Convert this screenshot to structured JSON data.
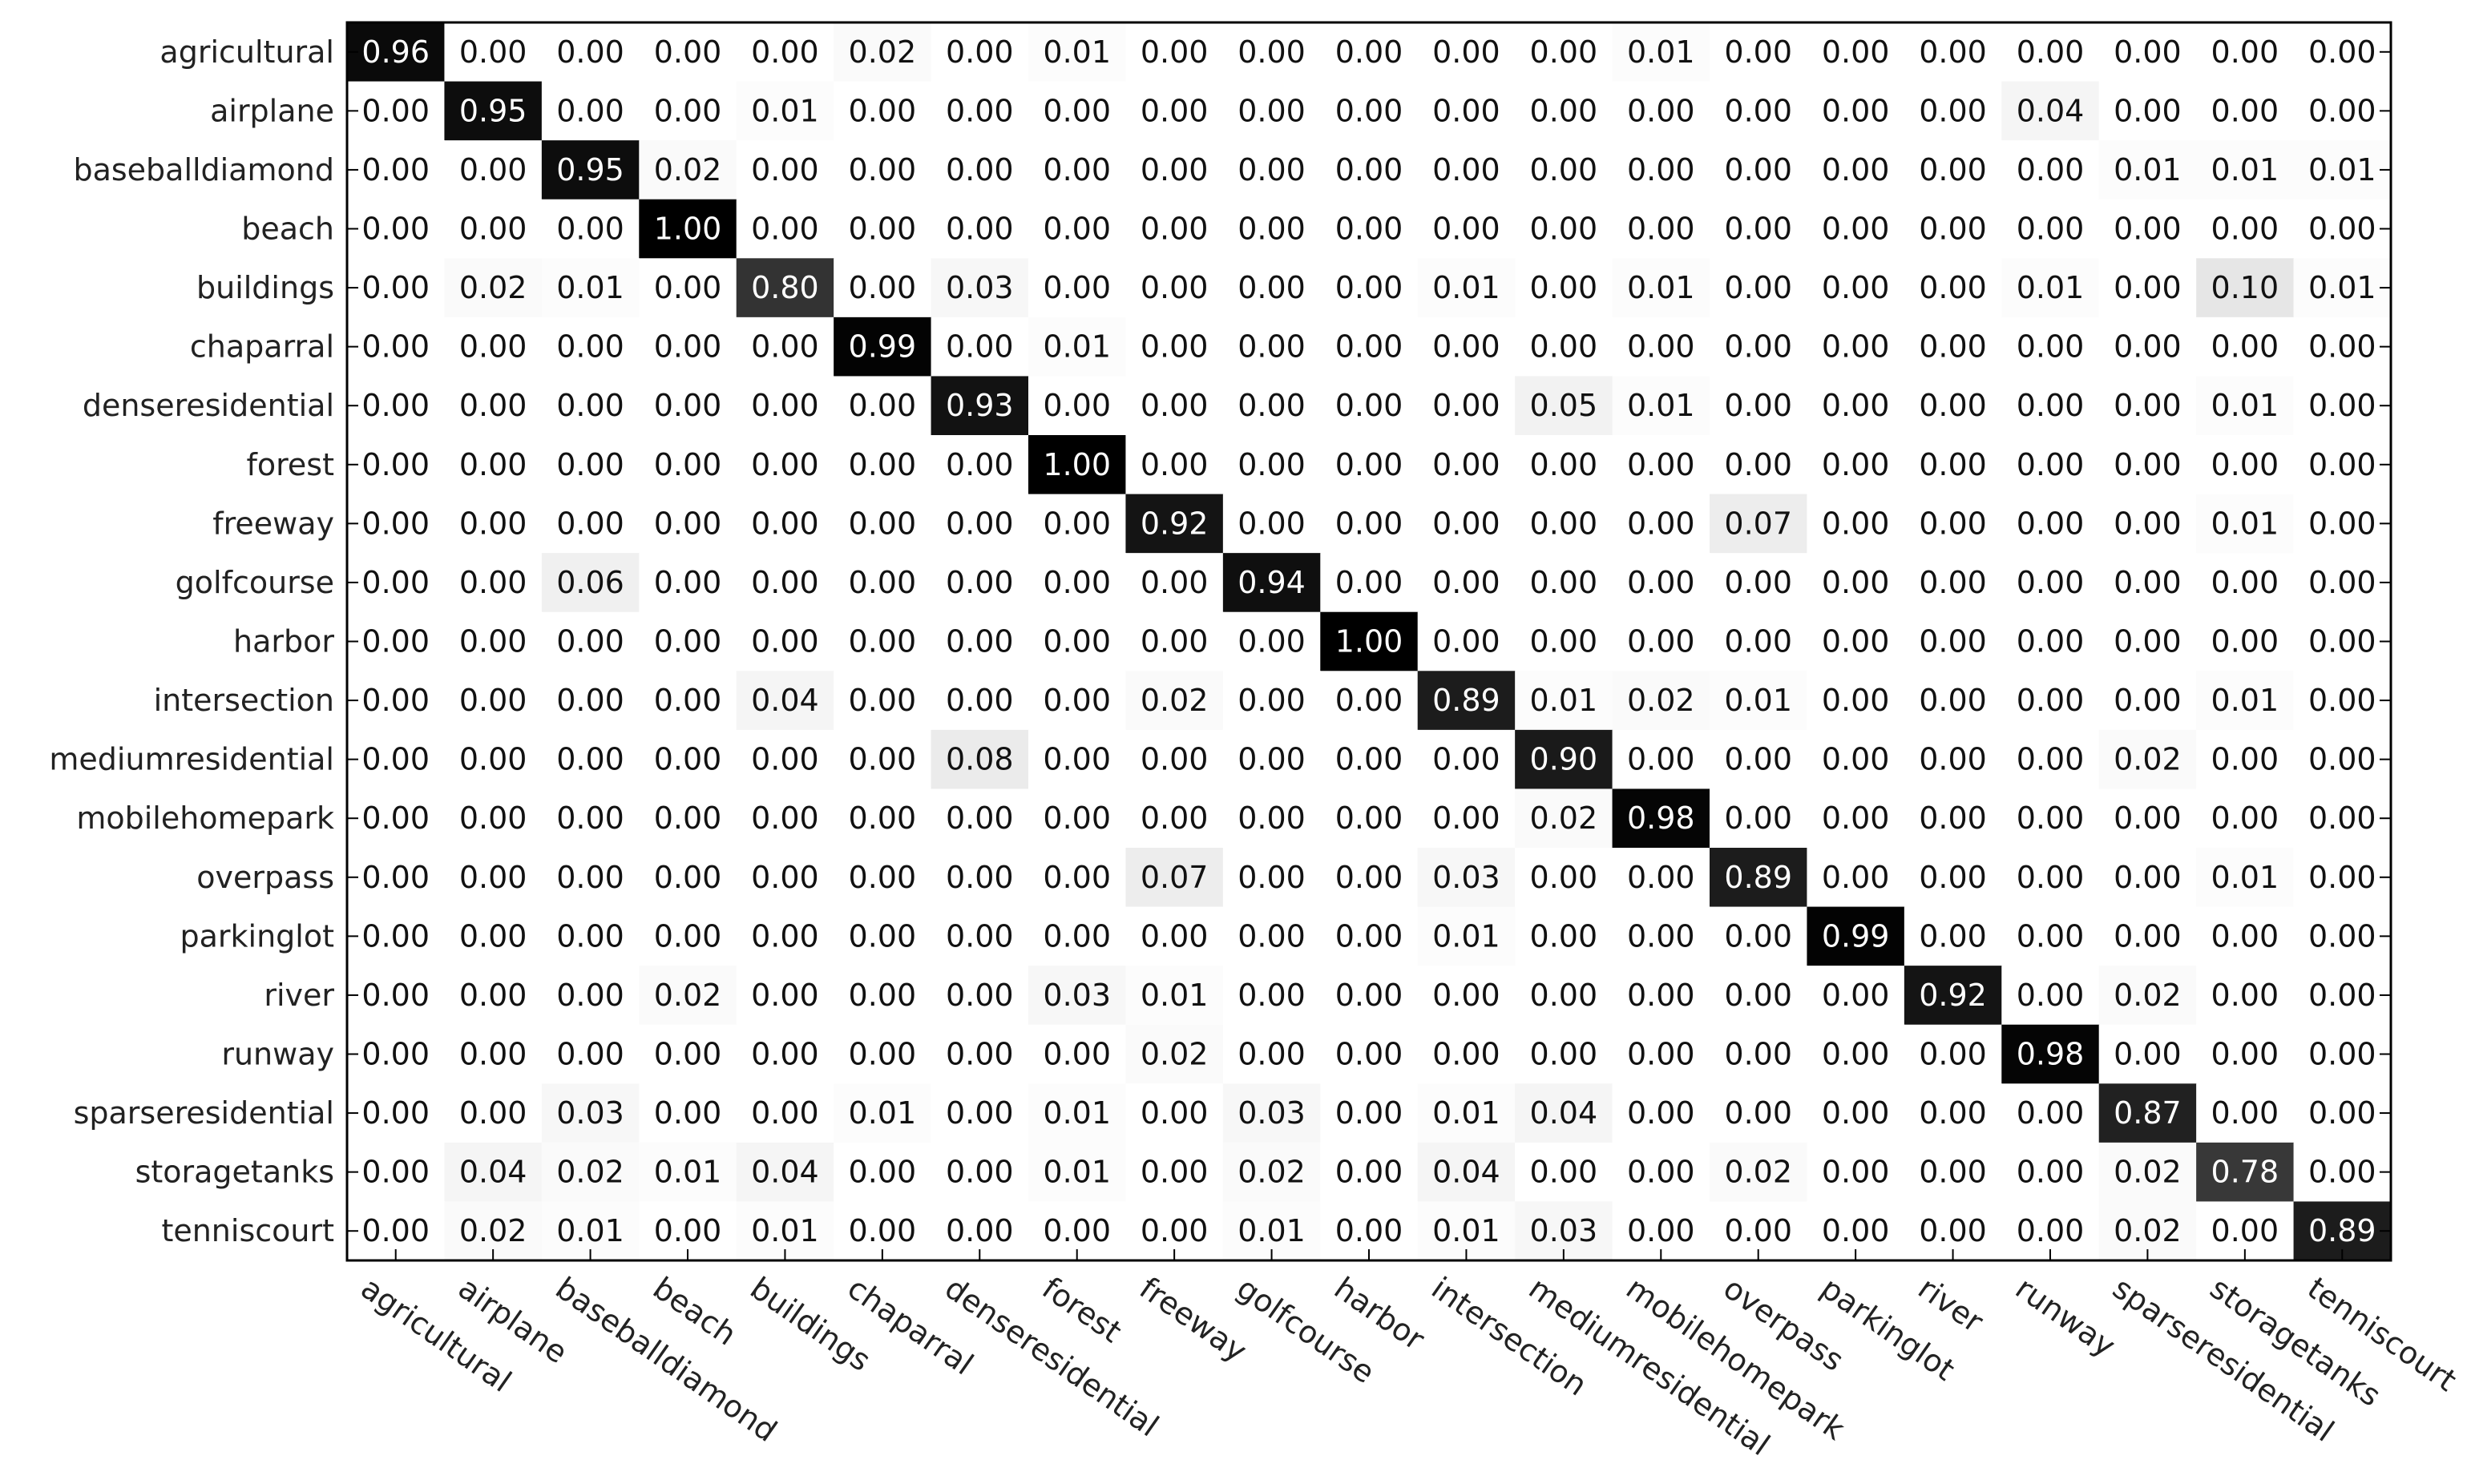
{
  "chart_data": {
    "type": "heatmap",
    "title": "",
    "xlabel": "",
    "ylabel": "",
    "value_format": "2 decimals",
    "colormap": [
      "#ffffff",
      "#000000"
    ],
    "row_labels": [
      "agricultural",
      "airplane",
      "baseballdiamond",
      "beach",
      "buildings",
      "chaparral",
      "denseresidential",
      "forest",
      "freeway",
      "golfcourse",
      "harbor",
      "intersection",
      "mediumresidential",
      "mobilehomepark",
      "overpass",
      "parkinglot",
      "river",
      "runway",
      "sparseresidential",
      "storagetanks",
      "tenniscourt"
    ],
    "col_labels": [
      "agricultural",
      "airplane",
      "baseballdiamond",
      "beach",
      "buildings",
      "chaparral",
      "denseresidential",
      "forest",
      "freeway",
      "golfcourse",
      "harbor",
      "intersection",
      "mediumresidential",
      "mobilehomepark",
      "overpass",
      "parkinglot",
      "river",
      "runway",
      "sparseresidential",
      "storagetanks",
      "tenniscourt"
    ],
    "matrix": [
      [
        0.96,
        0.0,
        0.0,
        0.0,
        0.0,
        0.02,
        0.0,
        0.01,
        0.0,
        0.0,
        0.0,
        0.0,
        0.0,
        0.01,
        0.0,
        0.0,
        0.0,
        0.0,
        0.0,
        0.0,
        0.0
      ],
      [
        0.0,
        0.95,
        0.0,
        0.0,
        0.01,
        0.0,
        0.0,
        0.0,
        0.0,
        0.0,
        0.0,
        0.0,
        0.0,
        0.0,
        0.0,
        0.0,
        0.0,
        0.04,
        0.0,
        0.0,
        0.0
      ],
      [
        0.0,
        0.0,
        0.95,
        0.02,
        0.0,
        0.0,
        0.0,
        0.0,
        0.0,
        0.0,
        0.0,
        0.0,
        0.0,
        0.0,
        0.0,
        0.0,
        0.0,
        0.0,
        0.01,
        0.01,
        0.01
      ],
      [
        0.0,
        0.0,
        0.0,
        1.0,
        0.0,
        0.0,
        0.0,
        0.0,
        0.0,
        0.0,
        0.0,
        0.0,
        0.0,
        0.0,
        0.0,
        0.0,
        0.0,
        0.0,
        0.0,
        0.0,
        0.0
      ],
      [
        0.0,
        0.02,
        0.01,
        0.0,
        0.8,
        0.0,
        0.03,
        0.0,
        0.0,
        0.0,
        0.0,
        0.01,
        0.0,
        0.01,
        0.0,
        0.0,
        0.0,
        0.01,
        0.0,
        0.1,
        0.01
      ],
      [
        0.0,
        0.0,
        0.0,
        0.0,
        0.0,
        0.99,
        0.0,
        0.01,
        0.0,
        0.0,
        0.0,
        0.0,
        0.0,
        0.0,
        0.0,
        0.0,
        0.0,
        0.0,
        0.0,
        0.0,
        0.0
      ],
      [
        0.0,
        0.0,
        0.0,
        0.0,
        0.0,
        0.0,
        0.93,
        0.0,
        0.0,
        0.0,
        0.0,
        0.0,
        0.05,
        0.01,
        0.0,
        0.0,
        0.0,
        0.0,
        0.0,
        0.01,
        0.0
      ],
      [
        0.0,
        0.0,
        0.0,
        0.0,
        0.0,
        0.0,
        0.0,
        1.0,
        0.0,
        0.0,
        0.0,
        0.0,
        0.0,
        0.0,
        0.0,
        0.0,
        0.0,
        0.0,
        0.0,
        0.0,
        0.0
      ],
      [
        0.0,
        0.0,
        0.0,
        0.0,
        0.0,
        0.0,
        0.0,
        0.0,
        0.92,
        0.0,
        0.0,
        0.0,
        0.0,
        0.0,
        0.07,
        0.0,
        0.0,
        0.0,
        0.0,
        0.01,
        0.0
      ],
      [
        0.0,
        0.0,
        0.06,
        0.0,
        0.0,
        0.0,
        0.0,
        0.0,
        0.0,
        0.94,
        0.0,
        0.0,
        0.0,
        0.0,
        0.0,
        0.0,
        0.0,
        0.0,
        0.0,
        0.0,
        0.0
      ],
      [
        0.0,
        0.0,
        0.0,
        0.0,
        0.0,
        0.0,
        0.0,
        0.0,
        0.0,
        0.0,
        1.0,
        0.0,
        0.0,
        0.0,
        0.0,
        0.0,
        0.0,
        0.0,
        0.0,
        0.0,
        0.0
      ],
      [
        0.0,
        0.0,
        0.0,
        0.0,
        0.04,
        0.0,
        0.0,
        0.0,
        0.02,
        0.0,
        0.0,
        0.89,
        0.01,
        0.02,
        0.01,
        0.0,
        0.0,
        0.0,
        0.0,
        0.01,
        0.0
      ],
      [
        0.0,
        0.0,
        0.0,
        0.0,
        0.0,
        0.0,
        0.08,
        0.0,
        0.0,
        0.0,
        0.0,
        0.0,
        0.9,
        0.0,
        0.0,
        0.0,
        0.0,
        0.0,
        0.02,
        0.0,
        0.0
      ],
      [
        0.0,
        0.0,
        0.0,
        0.0,
        0.0,
        0.0,
        0.0,
        0.0,
        0.0,
        0.0,
        0.0,
        0.0,
        0.02,
        0.98,
        0.0,
        0.0,
        0.0,
        0.0,
        0.0,
        0.0,
        0.0
      ],
      [
        0.0,
        0.0,
        0.0,
        0.0,
        0.0,
        0.0,
        0.0,
        0.0,
        0.07,
        0.0,
        0.0,
        0.03,
        0.0,
        0.0,
        0.89,
        0.0,
        0.0,
        0.0,
        0.0,
        0.01,
        0.0
      ],
      [
        0.0,
        0.0,
        0.0,
        0.0,
        0.0,
        0.0,
        0.0,
        0.0,
        0.0,
        0.0,
        0.0,
        0.01,
        0.0,
        0.0,
        0.0,
        0.99,
        0.0,
        0.0,
        0.0,
        0.0,
        0.0
      ],
      [
        0.0,
        0.0,
        0.0,
        0.02,
        0.0,
        0.0,
        0.0,
        0.03,
        0.01,
        0.0,
        0.0,
        0.0,
        0.0,
        0.0,
        0.0,
        0.0,
        0.92,
        0.0,
        0.02,
        0.0,
        0.0
      ],
      [
        0.0,
        0.0,
        0.0,
        0.0,
        0.0,
        0.0,
        0.0,
        0.0,
        0.02,
        0.0,
        0.0,
        0.0,
        0.0,
        0.0,
        0.0,
        0.0,
        0.0,
        0.98,
        0.0,
        0.0,
        0.0
      ],
      [
        0.0,
        0.0,
        0.03,
        0.0,
        0.0,
        0.01,
        0.0,
        0.01,
        0.0,
        0.03,
        0.0,
        0.01,
        0.04,
        0.0,
        0.0,
        0.0,
        0.0,
        0.0,
        0.87,
        0.0,
        0.0
      ],
      [
        0.0,
        0.04,
        0.02,
        0.01,
        0.04,
        0.0,
        0.0,
        0.01,
        0.0,
        0.02,
        0.0,
        0.04,
        0.0,
        0.0,
        0.02,
        0.0,
        0.0,
        0.0,
        0.02,
        0.78,
        0.0
      ],
      [
        0.0,
        0.02,
        0.01,
        0.0,
        0.01,
        0.0,
        0.0,
        0.0,
        0.0,
        0.01,
        0.0,
        0.01,
        0.03,
        0.0,
        0.0,
        0.0,
        0.0,
        0.0,
        0.02,
        0.0,
        0.89
      ]
    ],
    "grid": false,
    "legend": "none"
  }
}
